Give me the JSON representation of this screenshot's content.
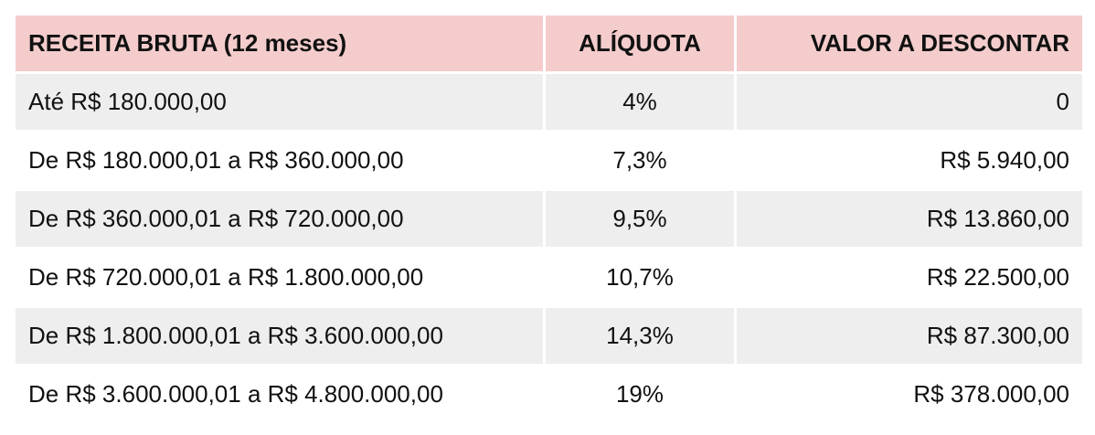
{
  "table": {
    "headers": [
      "RECEITA BRUTA (12 meses)",
      "ALÍQUOTA",
      "VALOR A DESCONTAR"
    ],
    "rows": [
      [
        "Até R$ 180.000,00",
        "4%",
        "0"
      ],
      [
        "De R$ 180.000,01 a R$ 360.000,00",
        "7,3%",
        "R$ 5.940,00"
      ],
      [
        "De R$ 360.000,01 a R$ 720.000,00",
        "9,5%",
        "R$ 13.860,00"
      ],
      [
        "De R$ 720.000,01 a R$ 1.800.000,00",
        "10,7%",
        "R$ 22.500,00"
      ],
      [
        "De R$ 1.800.000,01 a R$ 3.600.000,00",
        "14,3%",
        "R$ 87.300,00"
      ],
      [
        "De R$ 3.600.000,01 a R$ 4.800.000,00",
        "19%",
        "R$ 378.000,00"
      ]
    ]
  },
  "colors": {
    "header_bg": "#f4cccc",
    "row_shade": "#eeeeee",
    "row_plain": "#ffffff"
  }
}
